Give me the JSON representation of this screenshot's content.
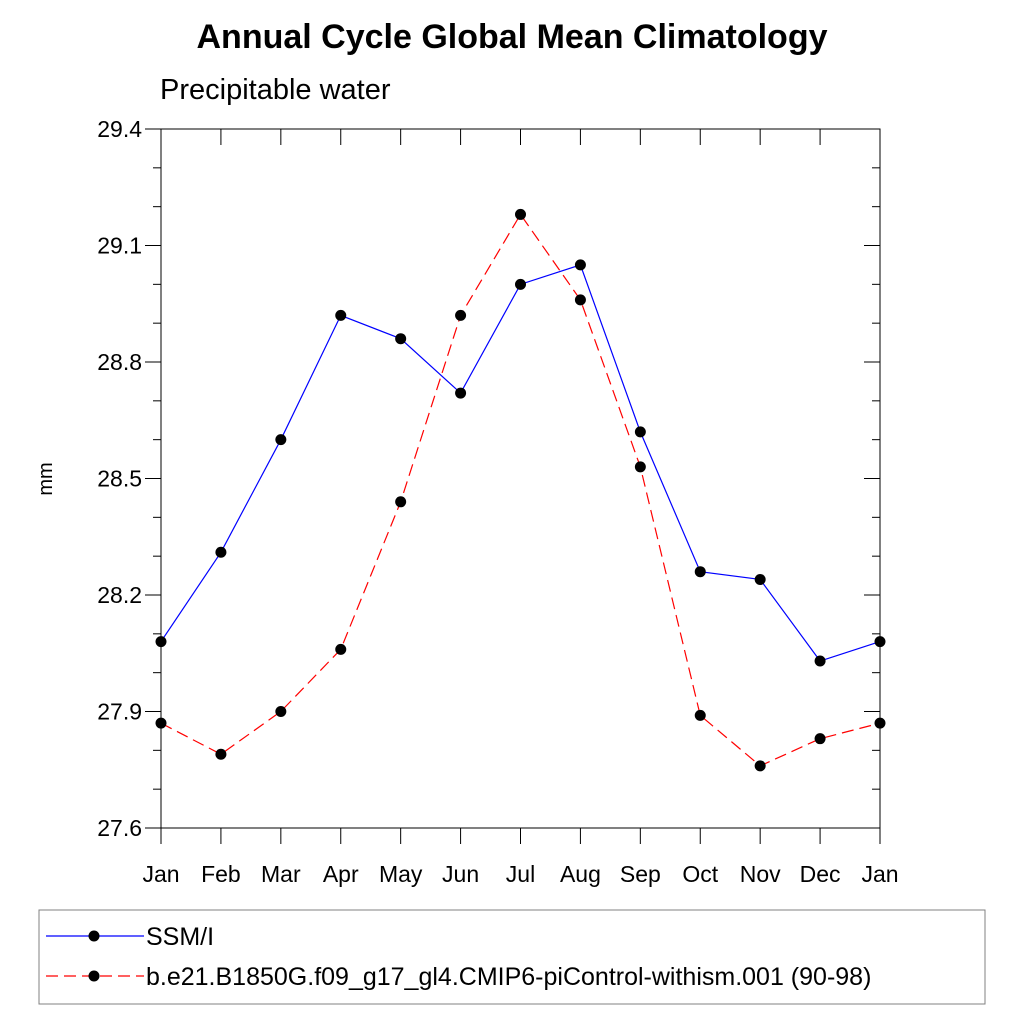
{
  "chart_data": {
    "type": "line",
    "title": "Annual Cycle Global Mean Climatology",
    "subtitle": "Precipitable water",
    "xlabel": "",
    "ylabel": "mm",
    "categories": [
      "Jan",
      "Feb",
      "Mar",
      "Apr",
      "May",
      "Jun",
      "Jul",
      "Aug",
      "Sep",
      "Oct",
      "Nov",
      "Dec",
      "Jan"
    ],
    "ylim": [
      27.6,
      29.4
    ],
    "yticks": [
      "27.6",
      "27.9",
      "28.2",
      "28.5",
      "28.8",
      "29.1",
      "29.4"
    ],
    "grid": false,
    "legend_position": "bottom",
    "series": [
      {
        "name": "SSM/I",
        "color": "#0000ff",
        "line_style": "solid",
        "marker": "filled-circle",
        "values": [
          28.08,
          28.31,
          28.6,
          28.92,
          28.86,
          28.72,
          29.0,
          29.05,
          28.62,
          28.26,
          28.24,
          28.03,
          28.08
        ]
      },
      {
        "name": "b.e21.B1850G.f09_g17_gl4.CMIP6-piControl-withism.001 (90-98)",
        "color": "#ff0000",
        "line_style": "dashed",
        "marker": "filled-circle",
        "values": [
          27.87,
          27.79,
          27.9,
          28.06,
          28.44,
          28.92,
          29.18,
          28.96,
          28.53,
          27.89,
          27.76,
          27.83,
          27.87
        ]
      }
    ]
  }
}
